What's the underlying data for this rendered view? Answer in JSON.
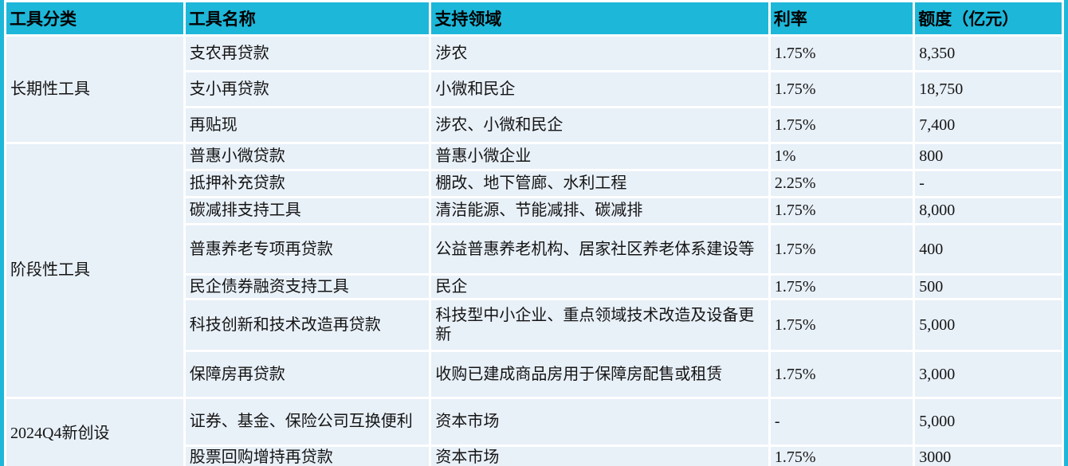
{
  "colors": {
    "header_bg": "#1db7d9",
    "cell_bg": "#e8f0f8",
    "grid_line": "#ffffff",
    "bottom_bar": "#000000",
    "text": "#141414"
  },
  "table": {
    "headers": {
      "category": "工具分类",
      "name": "工具名称",
      "field": "支持领域",
      "rate": "利率",
      "quota": "额度（亿元）"
    },
    "groups": [
      {
        "category": "长期性工具",
        "rows": [
          {
            "name": "支农再贷款",
            "field": "涉农",
            "rate": "1.75%",
            "quota": "8,350"
          },
          {
            "name": "支小再贷款",
            "field": "小微和民企",
            "rate": "1.75%",
            "quota": "18,750"
          },
          {
            "name": "再贴现",
            "field": "涉农、小微和民企",
            "rate": "1.75%",
            "quota": "7,400"
          }
        ]
      },
      {
        "category": "阶段性工具",
        "rows": [
          {
            "name": "普惠小微贷款",
            "field": "普惠小微企业",
            "rate": "1%",
            "quota": "800"
          },
          {
            "name": "抵押补充贷款",
            "field": "棚改、地下管廊、水利工程",
            "rate": "2.25%",
            "quota": "-"
          },
          {
            "name": "碳减排支持工具",
            "field": "清洁能源、节能减排、碳减排",
            "rate": "1.75%",
            "quota": "8,000"
          },
          {
            "name": "普惠养老专项再贷款",
            "field": "公益普惠养老机构、居家社区养老体系建设等",
            "rate": "1.75%",
            "quota": "400"
          },
          {
            "name": "民企债券融资支持工具",
            "field": "民企",
            "rate": "1.75%",
            "quota": "500"
          },
          {
            "name": "科技创新和技术改造再贷款",
            "field": "科技型中小企业、重点领域技术改造及设备更新",
            "rate": "1.75%",
            "quota": "5,000"
          },
          {
            "name": "保障房再贷款",
            "field": "收购已建成商品房用于保障房配售或租赁",
            "rate": "1.75%",
            "quota": "3,000"
          }
        ]
      },
      {
        "category": "2024Q4新创设",
        "rows": [
          {
            "name": "证券、基金、保险公司互换便利",
            "field": "资本市场",
            "rate": "-",
            "quota": "5,000"
          },
          {
            "name": "股票回购增持再贷款",
            "field": "资本市场",
            "rate": "1.75%",
            "quota": "3000"
          }
        ]
      }
    ]
  }
}
